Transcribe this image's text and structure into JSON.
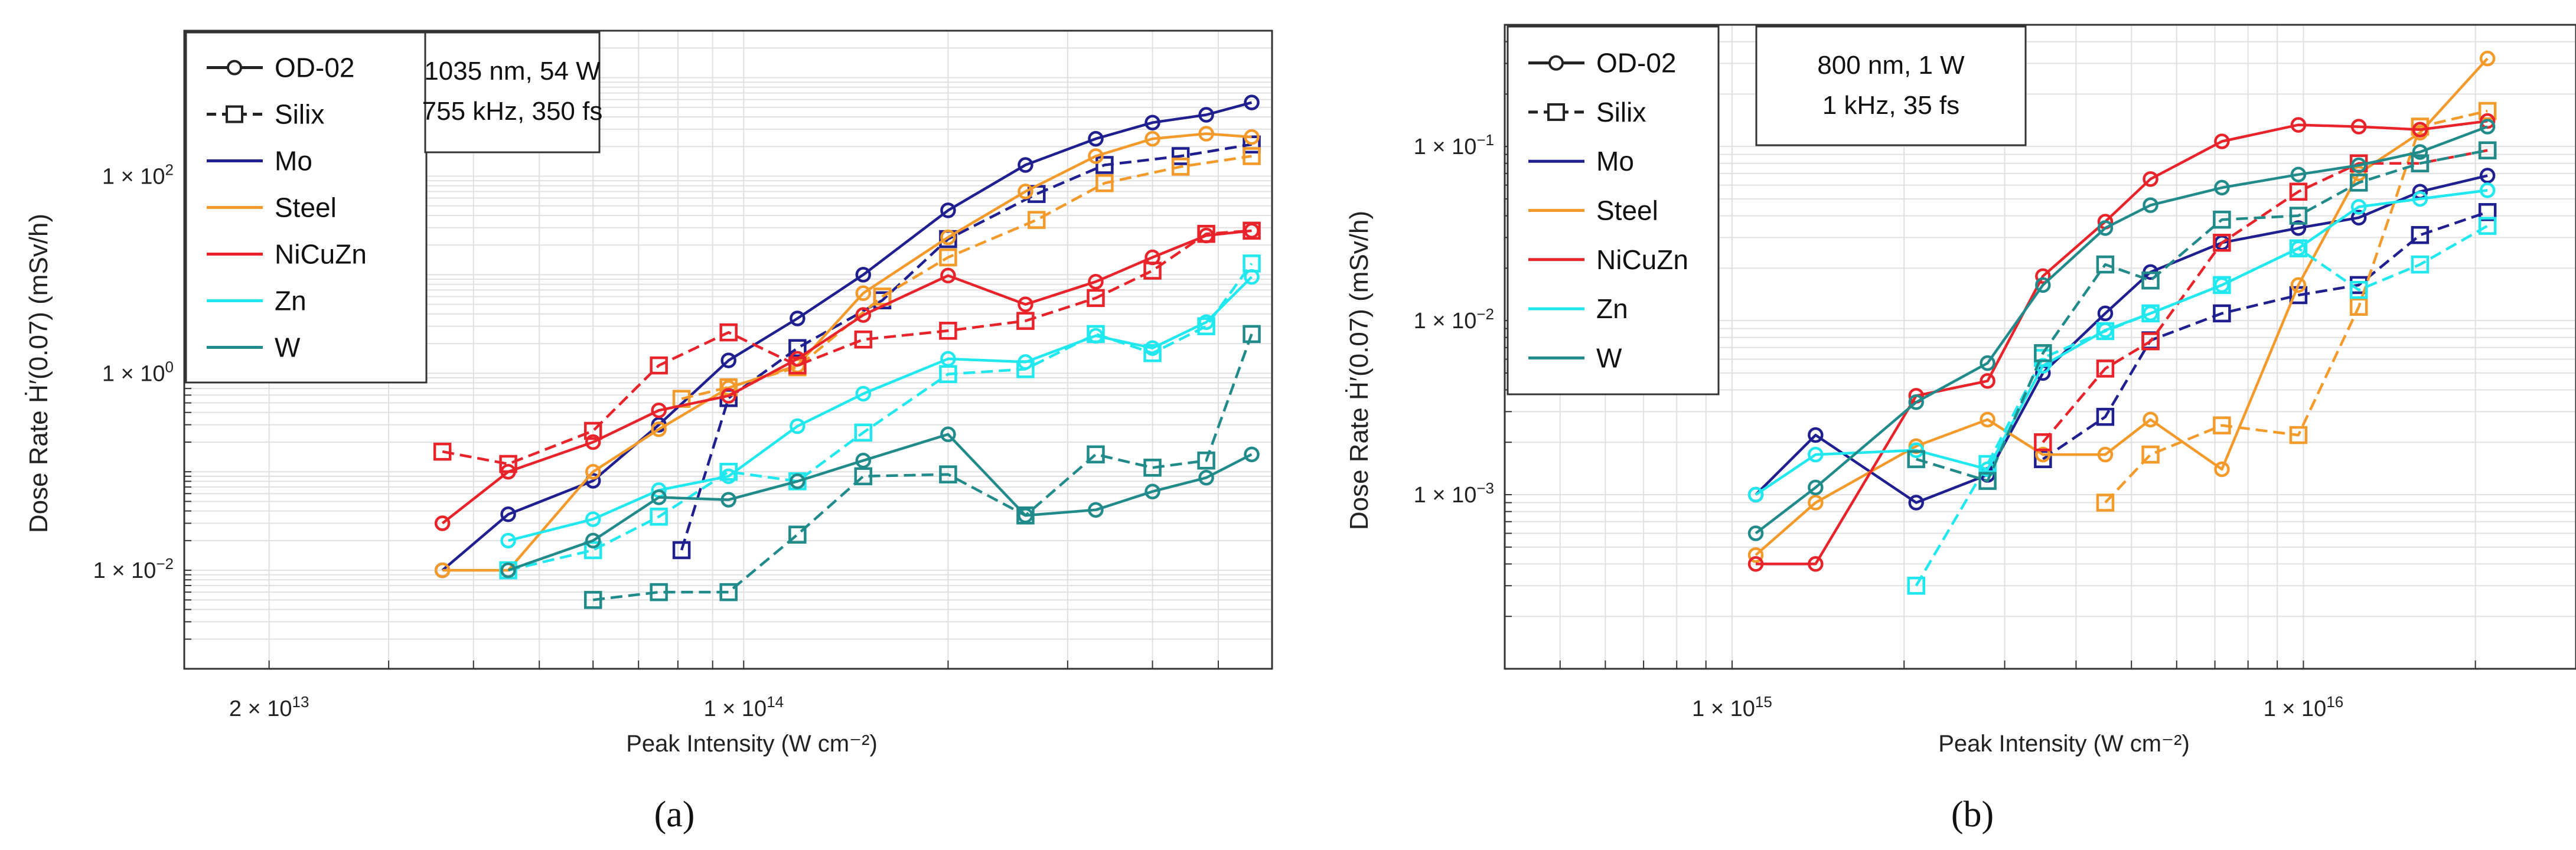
{
  "chart_data": [
    {
      "panel": "(a)",
      "type": "line",
      "xscale": "log",
      "yscale": "log",
      "xlim": [
        15000000000000,
        600000000000000
      ],
      "ylim": [
        0.001,
        3000
      ],
      "xlabel": "Peak Intensity (W cm⁻²)",
      "ylabel": "Dose Rate Ḣ′(0.07)  (mSv/h)",
      "x_ticklabels": [
        {
          "value": 20000000000000,
          "base": "2 × 10",
          "exp": "13"
        },
        {
          "value": 100000000000000,
          "base": "1 × 10",
          "exp": "14"
        }
      ],
      "y_ticklabels": [
        {
          "value": 0.01,
          "base": "1 × 10",
          "exp": "−2"
        },
        {
          "value": 1,
          "base": "1 × 10",
          "exp": "0"
        },
        {
          "value": 100,
          "base": "1 × 10",
          "exp": "2"
        }
      ],
      "annotation": [
        "1035 nm, 54 W",
        "755 kHz, 350 fs"
      ],
      "legend": {
        "location": "top-left",
        "style_entries": [
          {
            "label": "OD-02",
            "dash": false,
            "marker": "circle"
          },
          {
            "label": "Silix",
            "dash": true,
            "marker": "square"
          }
        ],
        "color_entries": [
          {
            "label": "Mo",
            "color": "#1f1f8f"
          },
          {
            "label": "Steel",
            "color": "#f39a2b"
          },
          {
            "label": "NiCuZn",
            "color": "#e8232a"
          },
          {
            "label": "Zn",
            "color": "#20e8ee"
          },
          {
            "label": "W",
            "color": "#218a8a"
          }
        ]
      },
      "series": [
        {
          "name": "Mo",
          "detector": "OD-02",
          "color": "#1f1f8f",
          "x": [
            36000000000000,
            45000000000000,
            60000000000000,
            75000000000000,
            95000000000000,
            120000000000000,
            150000000000000,
            200000000000000,
            260000000000000,
            330000000000000,
            400000000000000,
            480000000000000,
            560000000000000
          ],
          "y": [
            0.01,
            0.037,
            0.081,
            0.3,
            1.35,
            3.6,
            10,
            45,
            130,
            240,
            350,
            420,
            560
          ]
        },
        {
          "name": "Mo",
          "detector": "Silix",
          "color": "#1f1f8f",
          "x": [
            81000000000000,
            95000000000000,
            120000000000000,
            160000000000000,
            200000000000000,
            270000000000000,
            340000000000000,
            440000000000000,
            560000000000000
          ],
          "y": [
            0.016,
            0.56,
            1.8,
            5.5,
            23,
            66,
            130,
            160,
            210
          ]
        },
        {
          "name": "Steel",
          "detector": "OD-02",
          "color": "#f39a2b",
          "x": [
            36000000000000,
            45000000000000,
            60000000000000,
            75000000000000,
            95000000000000,
            120000000000000,
            150000000000000,
            200000000000000,
            260000000000000,
            330000000000000,
            400000000000000,
            480000000000000,
            560000000000000
          ],
          "y": [
            0.01,
            0.01,
            0.1,
            0.27,
            0.71,
            1.2,
            6.5,
            24,
            70,
            160,
            240,
            270,
            250
          ]
        },
        {
          "name": "Steel",
          "detector": "Silix",
          "color": "#f39a2b",
          "x": [
            81000000000000,
            95000000000000,
            120000000000000,
            160000000000000,
            200000000000000,
            270000000000000,
            340000000000000,
            440000000000000,
            560000000000000
          ],
          "y": [
            0.55,
            0.72,
            1.15,
            6,
            15,
            36,
            85,
            125,
            160
          ]
        },
        {
          "name": "NiCuZn",
          "detector": "OD-02",
          "color": "#e8232a",
          "x": [
            36000000000000,
            45000000000000,
            60000000000000,
            75000000000000,
            95000000000000,
            120000000000000,
            150000000000000,
            200000000000000,
            260000000000000,
            330000000000000,
            400000000000000,
            480000000000000,
            560000000000000
          ],
          "y": [
            0.03,
            0.1,
            0.2,
            0.42,
            0.59,
            1.4,
            3.9,
            9.8,
            5,
            8.5,
            15,
            25,
            28
          ]
        },
        {
          "name": "NiCuZn",
          "detector": "Silix",
          "color": "#e8232a",
          "x": [
            36000000000000,
            45000000000000,
            60000000000000,
            75000000000000,
            95000000000000,
            120000000000000,
            150000000000000,
            200000000000000,
            260000000000000,
            330000000000000,
            400000000000000,
            480000000000000,
            560000000000000
          ],
          "y": [
            0.16,
            0.12,
            0.26,
            1.2,
            2.6,
            1.2,
            2.2,
            2.7,
            3.4,
            5.8,
            11,
            26,
            28
          ]
        },
        {
          "name": "Zn",
          "detector": "OD-02",
          "color": "#20e8ee",
          "x": [
            45000000000000,
            60000000000000,
            75000000000000,
            95000000000000,
            120000000000000,
            150000000000000,
            200000000000000,
            260000000000000,
            330000000000000,
            400000000000000,
            480000000000000,
            560000000000000
          ],
          "y": [
            0.02,
            0.033,
            0.065,
            0.09,
            0.29,
            0.62,
            1.4,
            1.3,
            2.4,
            1.8,
            3.3,
            9.5
          ]
        },
        {
          "name": "Zn",
          "detector": "Silix",
          "color": "#20e8ee",
          "x": [
            45000000000000,
            60000000000000,
            75000000000000,
            95000000000000,
            120000000000000,
            150000000000000,
            200000000000000,
            260000000000000,
            330000000000000,
            400000000000000,
            480000000000000,
            560000000000000
          ],
          "y": [
            0.01,
            0.016,
            0.035,
            0.1,
            0.08,
            0.25,
            0.98,
            1.1,
            2.5,
            1.6,
            3,
            13
          ]
        },
        {
          "name": "W",
          "detector": "OD-02",
          "color": "#218a8a",
          "x": [
            45000000000000,
            60000000000000,
            75000000000000,
            95000000000000,
            120000000000000,
            150000000000000,
            200000000000000,
            260000000000000,
            330000000000000,
            400000000000000,
            480000000000000,
            560000000000000
          ],
          "y": [
            0.01,
            0.02,
            0.055,
            0.052,
            0.08,
            0.13,
            0.24,
            0.036,
            0.041,
            0.063,
            0.087,
            0.15
          ]
        },
        {
          "name": "W",
          "detector": "Silix",
          "color": "#218a8a",
          "x": [
            60000000000000,
            75000000000000,
            95000000000000,
            120000000000000,
            150000000000000,
            200000000000000,
            260000000000000,
            330000000000000,
            400000000000000,
            480000000000000,
            560000000000000
          ],
          "y": [
            0.005,
            0.006,
            0.006,
            0.023,
            0.09,
            0.094,
            0.036,
            0.15,
            0.11,
            0.13,
            2.5
          ]
        }
      ]
    },
    {
      "panel": "(b)",
      "type": "line",
      "xscale": "log",
      "yscale": "log",
      "xlim": [
        400000000000000,
        30000000000000000
      ],
      "ylim": [
        0.0001,
        0.5
      ],
      "xlabel": "Peak Intensity (W cm⁻²)",
      "ylabel": "Dose Rate Ḣ′(0.07)  (mSv/h)",
      "x_ticklabels": [
        {
          "value": 1000000000000000,
          "base": "1 × 10",
          "exp": "15"
        },
        {
          "value": 10000000000000000,
          "base": "1 × 10",
          "exp": "16"
        }
      ],
      "y_ticklabels": [
        {
          "value": 0.001,
          "base": "1 × 10",
          "exp": "−3"
        },
        {
          "value": 0.01,
          "base": "1 × 10",
          "exp": "−2"
        },
        {
          "value": 0.1,
          "base": "1 × 10",
          "exp": "−1"
        }
      ],
      "annotation": [
        "800 nm, 1 W",
        "1 kHz, 35 fs"
      ],
      "legend": {
        "location": "top-left",
        "style_entries": [
          {
            "label": "OD-02",
            "dash": false,
            "marker": "circle"
          },
          {
            "label": "Silix",
            "dash": true,
            "marker": "square"
          }
        ],
        "color_entries": [
          {
            "label": "Mo",
            "color": "#1f1f8f"
          },
          {
            "label": "Steel",
            "color": "#f39a2b"
          },
          {
            "label": "NiCuZn",
            "color": "#e8232a"
          },
          {
            "label": "Zn",
            "color": "#20e8ee"
          },
          {
            "label": "W",
            "color": "#218a8a"
          }
        ]
      },
      "series": [
        {
          "name": "Mo",
          "detector": "OD-02",
          "color": "#1f1f8f",
          "x": [
            1100000000000000,
            1400000000000000,
            2100000000000000,
            2800000000000000,
            3500000000000000,
            4500000000000000,
            5400000000000000,
            7200000000000000,
            9800000000000000,
            12500000000000000,
            16000000000000000,
            21000000000000000
          ],
          "y": [
            0.001,
            0.0022,
            0.0009,
            0.0013,
            0.005,
            0.011,
            0.019,
            0.028,
            0.034,
            0.039,
            0.055,
            0.068
          ]
        },
        {
          "name": "Mo",
          "detector": "Silix",
          "color": "#1f1f8f",
          "x": [
            3500000000000000,
            4500000000000000,
            5400000000000000,
            7200000000000000,
            9800000000000000,
            12500000000000000,
            16000000000000000,
            21000000000000000
          ],
          "y": [
            0.0016,
            0.0028,
            0.0077,
            0.011,
            0.014,
            0.016,
            0.031,
            0.042
          ]
        },
        {
          "name": "Steel",
          "detector": "OD-02",
          "color": "#f39a2b",
          "x": [
            1100000000000000,
            1400000000000000,
            2100000000000000,
            2800000000000000,
            3500000000000000,
            4500000000000000,
            5400000000000000,
            7200000000000000,
            9800000000000000,
            12500000000000000,
            16000000000000000,
            21000000000000000
          ],
          "y": [
            0.00045,
            0.0009,
            0.0019,
            0.0027,
            0.0017,
            0.0017,
            0.0027,
            0.0014,
            0.016,
            0.07,
            0.12,
            0.32
          ]
        },
        {
          "name": "Steel",
          "detector": "Silix",
          "color": "#f39a2b",
          "x": [
            4500000000000000,
            5400000000000000,
            7200000000000000,
            9800000000000000,
            12500000000000000,
            16000000000000000,
            21000000000000000
          ],
          "y": [
            0.0009,
            0.0017,
            0.0025,
            0.0022,
            0.012,
            0.13,
            0.16
          ]
        },
        {
          "name": "NiCuZn",
          "detector": "OD-02",
          "color": "#e8232a",
          "x": [
            1100000000000000,
            1400000000000000,
            2100000000000000,
            2800000000000000,
            3500000000000000,
            4500000000000000,
            5400000000000000,
            7200000000000000,
            9800000000000000,
            12500000000000000,
            16000000000000000,
            21000000000000000
          ],
          "y": [
            0.0004,
            0.0004,
            0.0037,
            0.0045,
            0.018,
            0.037,
            0.065,
            0.107,
            0.133,
            0.13,
            0.125,
            0.14
          ]
        },
        {
          "name": "NiCuZn",
          "detector": "Silix",
          "color": "#e8232a",
          "x": [
            3500000000000000,
            4500000000000000,
            5400000000000000,
            7200000000000000,
            9800000000000000,
            12500000000000000,
            16000000000000000,
            21000000000000000
          ],
          "y": [
            0.002,
            0.0053,
            0.0076,
            0.028,
            0.055,
            0.08,
            0.08,
            0.095
          ]
        },
        {
          "name": "Zn",
          "detector": "OD-02",
          "color": "#20e8ee",
          "x": [
            1100000000000000,
            1400000000000000,
            2100000000000000,
            2800000000000000,
            3500000000000000,
            4500000000000000,
            5400000000000000,
            7200000000000000,
            9800000000000000,
            12500000000000000,
            16000000000000000,
            21000000000000000
          ],
          "y": [
            0.001,
            0.0017,
            0.0018,
            0.0014,
            0.0055,
            0.0088,
            0.011,
            0.016,
            0.026,
            0.045,
            0.05,
            0.056
          ]
        },
        {
          "name": "Zn",
          "detector": "Silix",
          "color": "#20e8ee",
          "x": [
            2100000000000000,
            2800000000000000,
            3500000000000000,
            4500000000000000,
            5400000000000000,
            7200000000000000,
            9800000000000000,
            12500000000000000,
            16000000000000000,
            21000000000000000
          ],
          "y": [
            0.0003,
            0.0015,
            0.0061,
            0.0087,
            0.011,
            0.016,
            0.026,
            0.015,
            0.021,
            0.035
          ]
        },
        {
          "name": "W",
          "detector": "OD-02",
          "color": "#218a8a",
          "x": [
            1100000000000000,
            1400000000000000,
            2100000000000000,
            2800000000000000,
            3500000000000000,
            4500000000000000,
            5400000000000000,
            7200000000000000,
            9800000000000000,
            12500000000000000,
            16000000000000000,
            21000000000000000
          ],
          "y": [
            0.0006,
            0.0011,
            0.0034,
            0.0057,
            0.016,
            0.034,
            0.046,
            0.058,
            0.069,
            0.078,
            0.093,
            0.13
          ]
        },
        {
          "name": "W",
          "detector": "Silix",
          "color": "#218a8a",
          "x": [
            2100000000000000,
            2800000000000000,
            3500000000000000,
            4500000000000000,
            5400000000000000,
            7200000000000000,
            9800000000000000,
            12500000000000000,
            16000000000000000,
            21000000000000000
          ],
          "y": [
            0.0016,
            0.0012,
            0.0065,
            0.021,
            0.017,
            0.038,
            0.04,
            0.062,
            0.08,
            0.095
          ]
        }
      ]
    }
  ]
}
